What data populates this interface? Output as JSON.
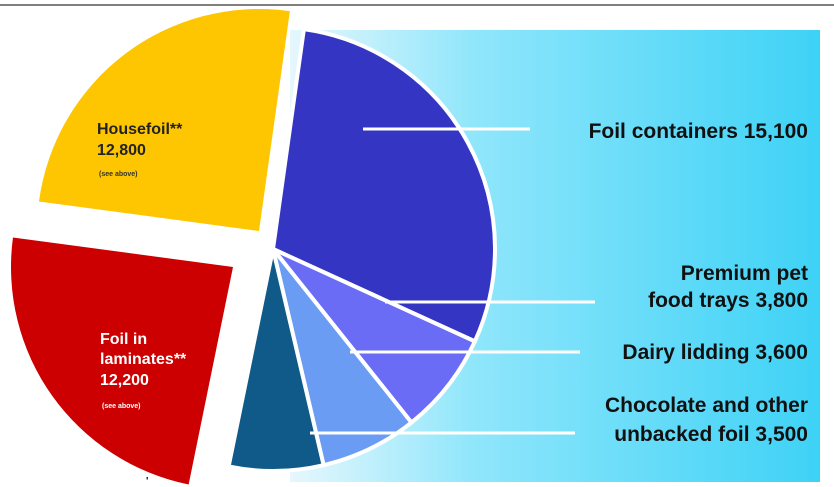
{
  "chart_data": {
    "type": "pie",
    "title": "",
    "slices": [
      {
        "label": "Foil containers",
        "value": 15100,
        "color": "#3535c4"
      },
      {
        "label": "Premium pet food trays",
        "value": 3800,
        "color": "#6a6cf6"
      },
      {
        "label": "Dairy lidding",
        "value": 3600,
        "color": "#6a9cf4"
      },
      {
        "label": "Chocolate and other unbacked foil",
        "value": 3500,
        "color": "#0f5a88"
      },
      {
        "label": "Foil in laminates**",
        "value": 12200,
        "color": "#cc0000",
        "note": "(see above)"
      },
      {
        "label": "Housefoil**",
        "value": 12800,
        "color": "#fdc600",
        "note": "(see above)"
      }
    ]
  },
  "labels": {
    "foil_containers": "Foil containers 15,100",
    "pet_trays_line1": "Premium pet",
    "pet_trays_line2": "food trays 3,800",
    "dairy": "Dairy lidding 3,600",
    "chocolate_line1": "Chocolate and other",
    "chocolate_line2": "unbacked foil 3,500",
    "housefoil_line1": "Housefoil**",
    "housefoil_line2": "12,800",
    "housefoil_note": "(see above)",
    "laminates_line1": "Foil in",
    "laminates_line2": "laminates**",
    "laminates_line3": "12,200",
    "laminates_note": "(see above)"
  },
  "colors": {
    "panel_light": "#e6f7fd",
    "panel_dark": "#3ed2f6",
    "leader_line": "#ffffff"
  }
}
